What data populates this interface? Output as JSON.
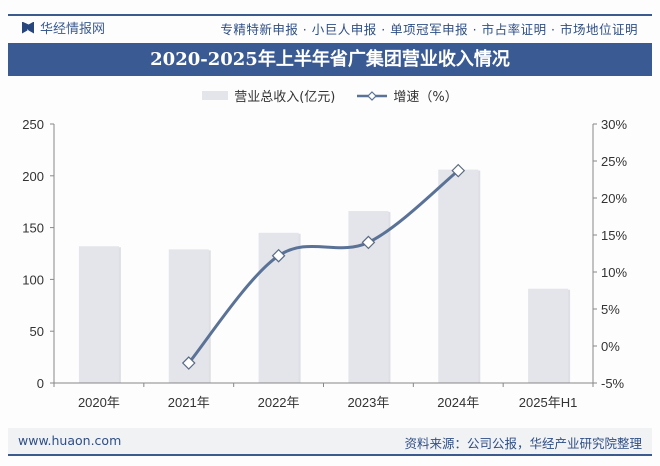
{
  "header": {
    "brand": "华经情报网",
    "services": "专精特新申报 · 小巨人申报 · 单项冠军申报 · 市占率证明 · 市场地位证明",
    "accent_color": "#3a5a94"
  },
  "footer": {
    "website": "www.huaon.com",
    "source": "资料来源：公司公报，华经产业研究院整理"
  },
  "chart_data": {
    "type": "bar+line",
    "title": "2020-2025年上半年省广集团营业收入情况",
    "categories": [
      "2020年",
      "2021年",
      "2022年",
      "2023年",
      "2024年",
      "2025年H1"
    ],
    "series": [
      {
        "name": "营业总收入(亿元)",
        "type": "bar",
        "axis": "left",
        "color": "#e3e5ea",
        "values": [
          132,
          129,
          145,
          166,
          206,
          91
        ]
      },
      {
        "name": "增速（%）",
        "type": "line",
        "axis": "right",
        "color": "#5a7296",
        "values": [
          null,
          -2.3,
          12.2,
          14.0,
          23.7,
          null
        ]
      }
    ],
    "y_left": {
      "range": [
        0,
        250
      ],
      "ticks": [
        "0",
        "50",
        "100",
        "150",
        "200",
        "250"
      ]
    },
    "y_right": {
      "range": [
        -5,
        30
      ],
      "ticks": [
        "-5%",
        "0%",
        "5%",
        "10%",
        "15%",
        "20%",
        "25%",
        "30%"
      ]
    },
    "legend_position": "top-center",
    "grid": false
  }
}
